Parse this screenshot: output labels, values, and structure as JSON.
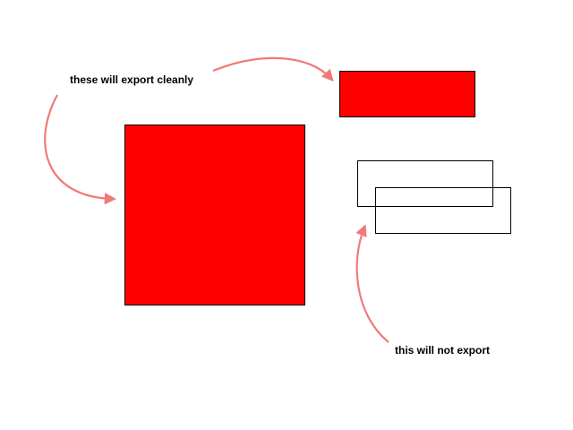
{
  "annotations": {
    "export_clean_label": "these will export cleanly",
    "no_export_label": "this will not export"
  },
  "colors": {
    "fill": "#ff0000",
    "stroke": "#000000",
    "arrow": "#f08080",
    "background": "#ffffff"
  },
  "shapes": {
    "exportable": [
      "large-red-square",
      "small-red-rectangle"
    ],
    "non_exportable": [
      "overlapping-outlined-rectangles"
    ]
  }
}
